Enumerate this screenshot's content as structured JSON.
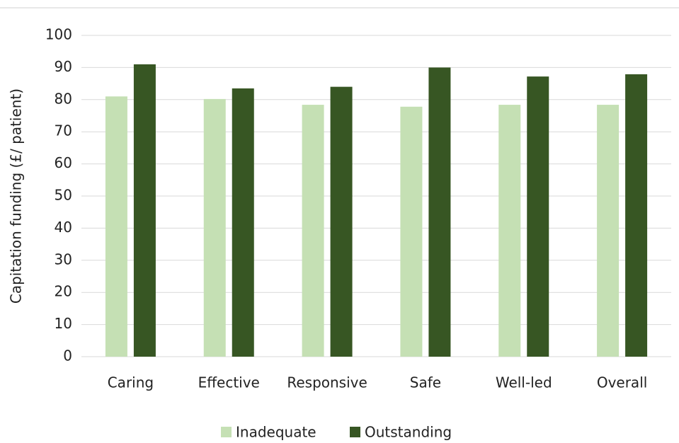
{
  "chart_data": {
    "type": "bar",
    "y_label": "Capitation funding  (£/ patient)",
    "categories": [
      "Caring",
      "Effective",
      "Responsive",
      "Safe",
      "Well-led",
      "Overall"
    ],
    "series": [
      {
        "name": "Inadequate",
        "color": "#c5e0b4",
        "values": [
          81,
          80.2,
          78.4,
          77.8,
          78.4,
          78.4
        ]
      },
      {
        "name": "Outstanding",
        "color": "#375623",
        "values": [
          91,
          83.5,
          84,
          90,
          87.2,
          87.9
        ]
      }
    ],
    "ylim": [
      0,
      100
    ],
    "yticks": [
      0,
      10,
      20,
      30,
      40,
      50,
      60,
      70,
      80,
      90,
      100
    ],
    "grid": true,
    "legend": "bottom"
  }
}
